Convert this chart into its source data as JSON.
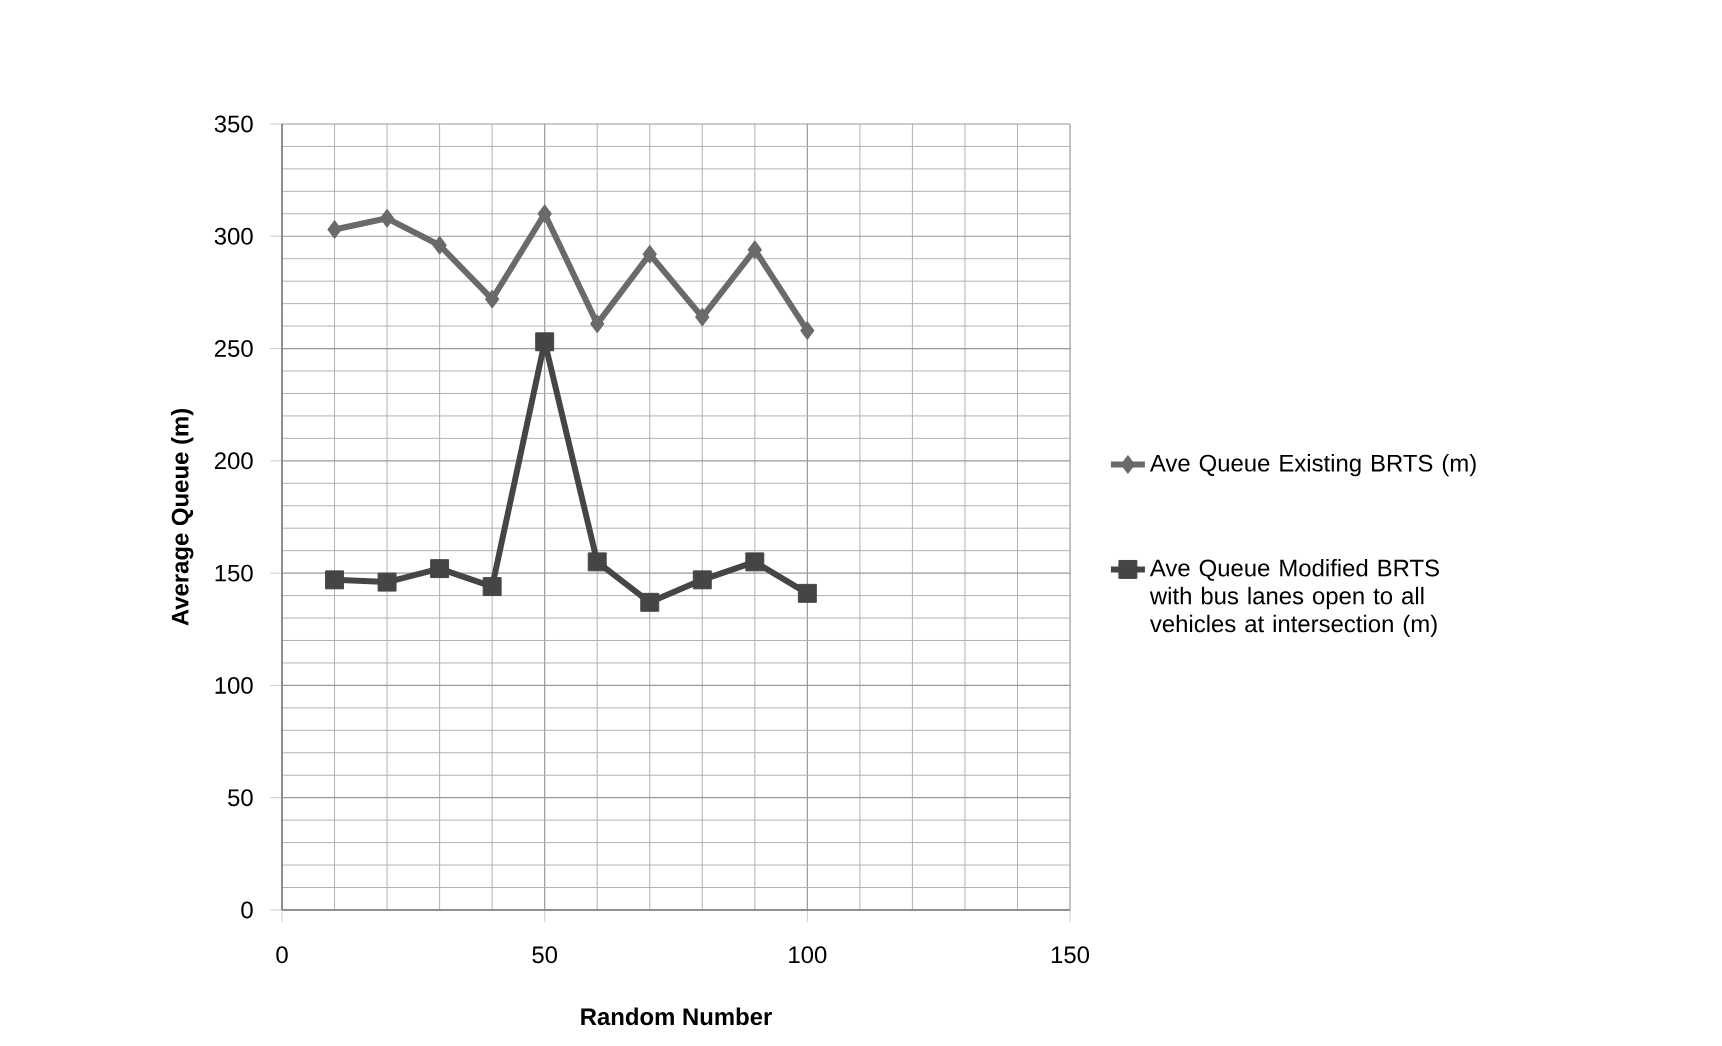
{
  "chart_data": {
    "type": "line",
    "xlabel": "Random Number",
    "ylabel": "Average Queue (m)",
    "x": [
      10,
      20,
      30,
      40,
      50,
      60,
      70,
      80,
      90,
      100
    ],
    "series": [
      {
        "name": "Ave Queue  Existing BRTS (m)",
        "color": "#6a6a6a",
        "marker": "diamond",
        "values": [
          303,
          308,
          296,
          272,
          310,
          261,
          292,
          264,
          294,
          258
        ]
      },
      {
        "name": "Ave Queue  Modified BRTS with bus lanes open to all vehicles at intersection (m)",
        "color": "#454545",
        "marker": "square",
        "values": [
          147,
          146,
          152,
          144,
          253,
          155,
          137,
          147,
          155,
          141
        ]
      }
    ],
    "xlim": [
      0,
      150
    ],
    "xticks": [
      0,
      50,
      100,
      150
    ],
    "ylim": [
      0,
      350
    ],
    "yticks": [
      0,
      50,
      100,
      150,
      200,
      250,
      300,
      350
    ],
    "grid": true,
    "legend": "right",
    "line_style": "solid"
  }
}
